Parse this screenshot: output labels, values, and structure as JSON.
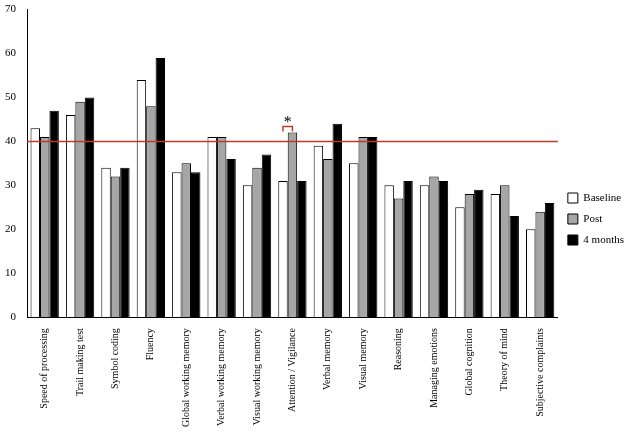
{
  "chart_data": {
    "type": "bar",
    "categories": [
      "Speed of processing",
      "Trail making test",
      "Symbol coding",
      "Fluency",
      "Global working memory",
      "Verbal working memory",
      "Visual working memory",
      "Attention / Vigilance",
      "Verbal memory",
      "Visual memory",
      "Reasoning",
      "Managing emotions",
      "Global cognition",
      "Theory of mind",
      "Subjective complaints"
    ],
    "series": [
      {
        "name": "Baseline",
        "color": "#ffffff",
        "values": [
          43,
          46,
          34,
          54,
          33,
          41,
          30,
          31,
          39,
          35,
          30,
          30,
          25,
          28,
          20
        ]
      },
      {
        "name": "Post",
        "color": "#a6a6a6",
        "values": [
          41,
          49,
          32,
          48,
          35,
          41,
          34,
          42,
          36,
          41,
          27,
          32,
          28,
          30,
          24
        ]
      },
      {
        "name": "4 months",
        "color": "#000000",
        "values": [
          47,
          50,
          34,
          59,
          33,
          36,
          37,
          31,
          44,
          41,
          31,
          31,
          29,
          23,
          26
        ]
      }
    ],
    "reference_line": {
      "value": 40,
      "color": "#c0392b"
    },
    "annotations": [
      {
        "text": "*",
        "category": "Attention / Vigilance",
        "series": [
          "Baseline",
          "Post"
        ],
        "color": "#c0392b"
      }
    ],
    "ylim": [
      0,
      70
    ],
    "yticks": [
      0,
      10,
      20,
      30,
      40,
      50,
      60,
      70
    ],
    "grid": false,
    "legend": "right"
  }
}
